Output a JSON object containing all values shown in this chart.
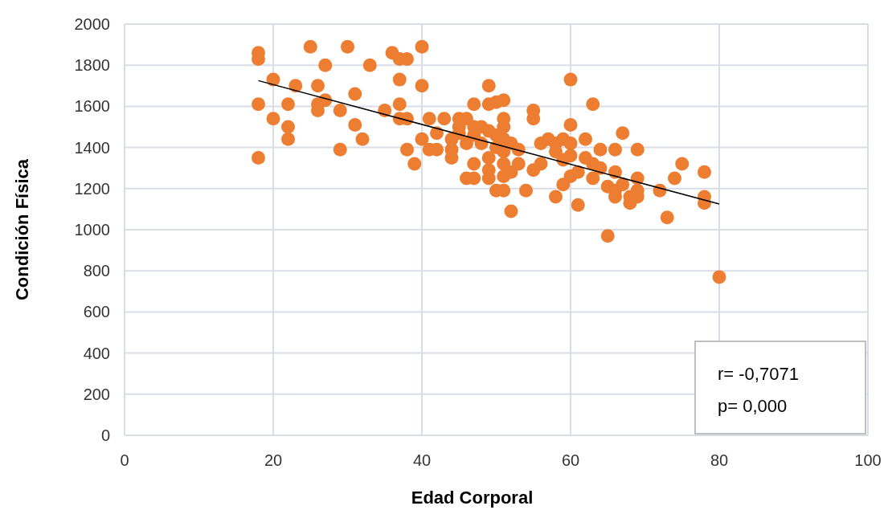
{
  "chart_data": {
    "type": "scatter",
    "xlabel": "Edad Corporal",
    "ylabel": "Condición Física",
    "xlim": [
      0,
      100
    ],
    "xticks": [
      0,
      20,
      40,
      60,
      80,
      100
    ],
    "ylim": [
      0,
      2000
    ],
    "yticks": [
      0,
      200,
      400,
      600,
      800,
      1000,
      1200,
      1400,
      1600,
      1800,
      2000
    ],
    "grid": true,
    "annotations": [
      "r= -0,7071",
      "p= 0,000"
    ],
    "series": [
      {
        "color": "#ed7d31",
        "marker": "circle",
        "x": [
          18,
          18,
          18,
          18,
          20,
          20,
          22,
          22,
          22,
          23,
          25,
          26,
          26,
          26,
          27,
          27,
          29,
          29,
          30,
          31,
          31,
          32,
          33,
          35,
          36,
          37,
          37,
          37,
          37,
          38,
          38,
          38,
          39,
          40,
          40,
          40,
          41,
          41,
          42,
          42,
          43,
          44,
          44,
          44,
          45,
          45,
          45,
          46,
          46,
          46,
          47,
          47,
          47,
          47,
          47,
          48,
          48,
          49,
          49,
          49,
          49,
          49,
          49,
          50,
          50,
          50,
          50,
          51,
          51,
          51,
          51,
          51,
          51,
          51,
          51,
          52,
          52,
          52,
          53,
          53,
          54,
          55,
          55,
          55,
          56,
          56,
          57,
          58,
          58,
          58,
          59,
          59,
          59,
          60,
          60,
          60,
          60,
          60,
          61,
          61,
          62,
          62,
          63,
          63,
          63,
          64,
          64,
          65,
          65,
          66,
          66,
          66,
          66,
          67,
          67,
          68,
          68,
          69,
          69,
          69,
          69,
          72,
          73,
          74,
          75,
          78,
          78,
          78,
          80
        ],
        "values": [
          1860,
          1830,
          1610,
          1350,
          1730,
          1540,
          1610,
          1500,
          1440,
          1700,
          1890,
          1700,
          1610,
          1580,
          1800,
          1630,
          1580,
          1390,
          1890,
          1660,
          1510,
          1440,
          1800,
          1580,
          1860,
          1830,
          1730,
          1610,
          1540,
          1830,
          1540,
          1390,
          1320,
          1890,
          1700,
          1440,
          1540,
          1390,
          1470,
          1390,
          1540,
          1440,
          1390,
          1350,
          1540,
          1500,
          1470,
          1540,
          1420,
          1250,
          1610,
          1500,
          1460,
          1320,
          1250,
          1500,
          1420,
          1700,
          1610,
          1480,
          1350,
          1290,
          1250,
          1620,
          1460,
          1400,
          1190,
          1630,
          1540,
          1500,
          1440,
          1380,
          1320,
          1260,
          1190,
          1420,
          1280,
          1090,
          1390,
          1320,
          1190,
          1580,
          1540,
          1290,
          1420,
          1320,
          1440,
          1420,
          1380,
          1160,
          1440,
          1340,
          1220,
          1730,
          1510,
          1420,
          1360,
          1260,
          1280,
          1120,
          1440,
          1350,
          1610,
          1320,
          1250,
          1390,
          1300,
          1210,
          970,
          1390,
          1280,
          1190,
          1160,
          1470,
          1220,
          1160,
          1130,
          1390,
          1250,
          1190,
          1160,
          1190,
          1060,
          1250,
          1320,
          1280,
          1160,
          1130,
          770
        ]
      },
      {
        "type": "line",
        "color": "#000000",
        "x": [
          18,
          80
        ],
        "values": [
          1725,
          1125
        ],
        "marker": "none"
      }
    ]
  }
}
